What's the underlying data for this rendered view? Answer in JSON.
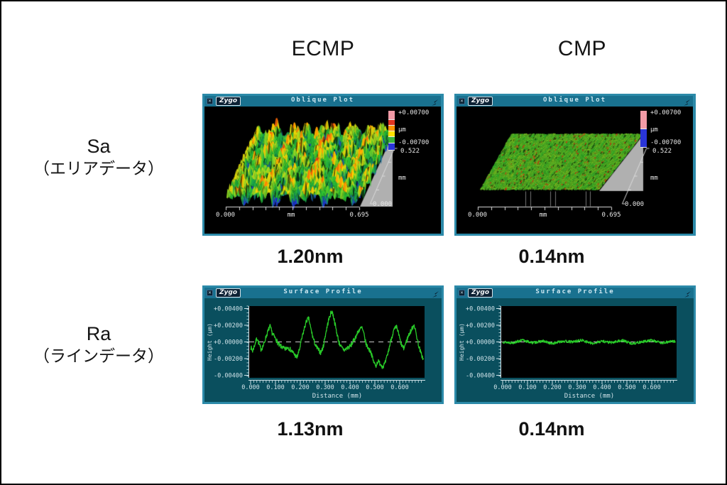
{
  "page": {
    "col_headers": {
      "left": "ECMP",
      "right": "CMP"
    },
    "row_labels": {
      "top": {
        "title": "Sa",
        "subtitle": "（エリアデータ）"
      },
      "bottom": {
        "title": "Ra",
        "subtitle": "（ラインデータ）"
      }
    },
    "values": {
      "sa_ecmp": "1.20nm",
      "sa_cmp": "0.14nm",
      "ra_ecmp": "1.13nm",
      "ra_cmp": "0.14nm"
    }
  },
  "window_chrome": {
    "logo_text": "Zygo",
    "close_glyph": "✕",
    "icons": [
      "close-icon",
      "zygo-logo",
      "pointer-tool-icon"
    ]
  },
  "colors": {
    "titlebar": "#19718f",
    "window_border": "#2c8aa9",
    "window_body": "#0a4f5e",
    "plot_bg": "#000000",
    "trace_green": "#28c828",
    "axis_text": "#d4e6ea",
    "colorbar_rough": [
      {
        "c": "#f29aa6",
        "h": 13
      },
      {
        "c": "#e23420",
        "h": 8
      },
      {
        "c": "#ff9300",
        "h": 8
      },
      {
        "c": "#ffe200",
        "h": 8
      },
      {
        "c": "#39b339",
        "h": 9
      },
      {
        "c": "#2a35d8",
        "h": 10
      }
    ],
    "colorbar_flat": [
      {
        "c": "#f29aa6",
        "h": 26
      },
      {
        "c": "#2a35d8",
        "h": 26
      }
    ]
  },
  "chart_data": [
    {
      "id": "ecmp_oblique",
      "type": "heatmap",
      "window_title": "Oblique Plot",
      "surface": "rough",
      "x_axis": {
        "min": "0.000",
        "unit": "mm",
        "max": "0.695"
      },
      "depth_axis": {
        "unit": "mm",
        "min": "0.000",
        "extent": "0.522"
      },
      "color_scale": {
        "max": "+0.00700",
        "unit": "µm",
        "min": "-0.00700"
      },
      "height_range_um": [
        -0.007,
        0.007
      ],
      "measured_sa_nm": 1.2
    },
    {
      "id": "cmp_oblique",
      "type": "heatmap",
      "window_title": "Oblique Plot",
      "surface": "flat",
      "x_axis": {
        "min": "0.000",
        "unit": "mm",
        "max": "0.695"
      },
      "depth_axis": {
        "unit": "mm",
        "min": "0.000",
        "extent": "0.522"
      },
      "color_scale": {
        "max": "+0.00700",
        "unit": "µm",
        "min": "-0.00700"
      },
      "height_range_um": [
        -0.007,
        0.007
      ],
      "measured_sa_nm": 0.14
    },
    {
      "id": "ecmp_profile",
      "type": "line",
      "window_title": "Surface Profile",
      "xlabel": "Distance (mm)",
      "ylabel": "Height (µm)",
      "x_ticks": [
        "0.000",
        "0.100",
        "0.200",
        "0.300",
        "0.400",
        "0.500",
        "0.600"
      ],
      "y_ticks": [
        "+0.00400",
        "+0.00200",
        "+0.00000",
        "-0.00200",
        "-0.00400"
      ],
      "xlim": [
        0,
        0.695
      ],
      "ylim": [
        -0.0042,
        0.0042
      ],
      "noise_um": 0.00028,
      "measured_ra_nm": 1.13,
      "points": [
        [
          0.0,
          -0.0006
        ],
        [
          0.008,
          -0.0011
        ],
        [
          0.018,
          -0.0002
        ],
        [
          0.026,
          0.0005
        ],
        [
          0.034,
          -0.0003
        ],
        [
          0.042,
          -0.0009
        ],
        [
          0.052,
          -0.0004
        ],
        [
          0.062,
          0.0006
        ],
        [
          0.07,
          0.0013
        ],
        [
          0.078,
          0.0019
        ],
        [
          0.086,
          0.0011
        ],
        [
          0.094,
          0.0007
        ],
        [
          0.104,
          0.0002
        ],
        [
          0.114,
          -0.0004
        ],
        [
          0.126,
          -0.0006
        ],
        [
          0.138,
          -0.0009
        ],
        [
          0.15,
          -0.0006
        ],
        [
          0.162,
          -0.001
        ],
        [
          0.174,
          -0.0014
        ],
        [
          0.186,
          -0.0019
        ],
        [
          0.196,
          -0.001
        ],
        [
          0.206,
          0.0004
        ],
        [
          0.216,
          0.0016
        ],
        [
          0.226,
          0.0026
        ],
        [
          0.234,
          0.0028
        ],
        [
          0.242,
          0.0016
        ],
        [
          0.252,
          0.0004
        ],
        [
          0.262,
          -0.0005
        ],
        [
          0.272,
          -0.0009
        ],
        [
          0.282,
          -0.0013
        ],
        [
          0.292,
          -0.0006
        ],
        [
          0.302,
          0.001
        ],
        [
          0.312,
          0.0024
        ],
        [
          0.322,
          0.0034
        ],
        [
          0.328,
          0.0037
        ],
        [
          0.336,
          0.0027
        ],
        [
          0.346,
          0.0012
        ],
        [
          0.356,
          -0.0001
        ],
        [
          0.366,
          -0.0007
        ],
        [
          0.378,
          -0.001
        ],
        [
          0.39,
          -0.0007
        ],
        [
          0.402,
          -0.0005
        ],
        [
          0.414,
          0.0001
        ],
        [
          0.426,
          0.0008
        ],
        [
          0.438,
          0.0015
        ],
        [
          0.448,
          0.0017
        ],
        [
          0.456,
          0.0009
        ],
        [
          0.464,
          -0.0002
        ],
        [
          0.474,
          -0.0008
        ],
        [
          0.484,
          -0.0012
        ],
        [
          0.494,
          -0.0023
        ],
        [
          0.504,
          -0.0029
        ],
        [
          0.512,
          -0.0023
        ],
        [
          0.522,
          -0.0026
        ],
        [
          0.532,
          -0.003
        ],
        [
          0.542,
          -0.0025
        ],
        [
          0.554,
          -0.0012
        ],
        [
          0.566,
          0.0004
        ],
        [
          0.578,
          0.0015
        ],
        [
          0.588,
          0.0018
        ],
        [
          0.596,
          0.0009
        ],
        [
          0.606,
          -0.0003
        ],
        [
          0.616,
          -0.0008
        ],
        [
          0.626,
          0.0
        ],
        [
          0.636,
          0.0008
        ],
        [
          0.648,
          0.0015
        ],
        [
          0.658,
          0.0021
        ],
        [
          0.666,
          0.001
        ],
        [
          0.676,
          -0.0004
        ],
        [
          0.686,
          -0.0014
        ],
        [
          0.695,
          -0.0021
        ]
      ]
    },
    {
      "id": "cmp_profile",
      "type": "line",
      "window_title": "Surface Profile",
      "xlabel": "Distance (mm)",
      "ylabel": "Height (µm)",
      "x_ticks": [
        "0.000",
        "0.100",
        "0.200",
        "0.300",
        "0.400",
        "0.500",
        "0.600"
      ],
      "y_ticks": [
        "+0.00400",
        "+0.00200",
        "+0.00000",
        "-0.00200",
        "-0.00400"
      ],
      "xlim": [
        0,
        0.695
      ],
      "ylim": [
        -0.0042,
        0.0042
      ],
      "noise_um": 0.00016,
      "measured_ra_nm": 0.14,
      "points": [
        [
          0.0,
          0.0
        ],
        [
          0.04,
          -0.0001
        ],
        [
          0.08,
          0.0002
        ],
        [
          0.12,
          -0.0001
        ],
        [
          0.16,
          0.0001
        ],
        [
          0.2,
          -0.0002
        ],
        [
          0.24,
          0.0001
        ],
        [
          0.28,
          0.0
        ],
        [
          0.32,
          0.0002
        ],
        [
          0.36,
          -0.0002
        ],
        [
          0.4,
          0.0001
        ],
        [
          0.44,
          -0.0001
        ],
        [
          0.48,
          0.0002
        ],
        [
          0.52,
          -0.0002
        ],
        [
          0.56,
          0.0
        ],
        [
          0.6,
          0.0002
        ],
        [
          0.64,
          -0.0001
        ],
        [
          0.695,
          0.0001
        ]
      ]
    }
  ]
}
